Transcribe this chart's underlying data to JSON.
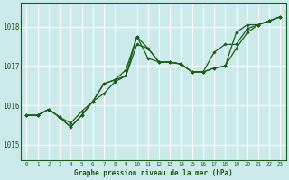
{
  "title": "Graphe pression niveau de la mer (hPa)",
  "bg_color": "#cceaea",
  "grid_color": "#ffffff",
  "line_color": "#1a5c1a",
  "marker_color": "#1a5c1a",
  "xlim": [
    -0.5,
    23.5
  ],
  "ylim": [
    1014.6,
    1018.6
  ],
  "yticks": [
    1015,
    1016,
    1017,
    1018
  ],
  "xticks": [
    0,
    1,
    2,
    3,
    4,
    5,
    6,
    7,
    8,
    9,
    10,
    11,
    12,
    13,
    14,
    15,
    16,
    17,
    18,
    19,
    20,
    21,
    22,
    23
  ],
  "series": [
    [
      1015.75,
      1015.75,
      1015.9,
      1015.7,
      1015.55,
      1015.85,
      1016.1,
      1016.55,
      1016.65,
      1016.9,
      1017.75,
      1017.2,
      1017.1,
      1017.1,
      1017.05,
      1016.85,
      1016.85,
      1016.95,
      1017.0,
      1017.85,
      1018.05,
      1018.05,
      1018.15,
      1018.25
    ],
    [
      1015.75,
      1015.75,
      1015.9,
      1015.7,
      1015.45,
      1015.75,
      1016.1,
      1016.55,
      1016.65,
      1016.75,
      1017.75,
      1017.45,
      1017.1,
      1017.1,
      1017.05,
      1016.85,
      1016.85,
      1017.35,
      1017.55,
      1017.55,
      1017.95,
      1018.05,
      1018.15,
      1018.25
    ],
    [
      1015.75,
      1015.75,
      1015.9,
      1015.7,
      1015.45,
      1015.75,
      1016.1,
      1016.3,
      1016.6,
      1016.75,
      1017.55,
      1017.45,
      1017.1,
      1017.1,
      1017.05,
      1016.85,
      1016.85,
      1016.95,
      1017.0,
      1017.45,
      1017.85,
      1018.05,
      1018.15,
      1018.25
    ]
  ]
}
